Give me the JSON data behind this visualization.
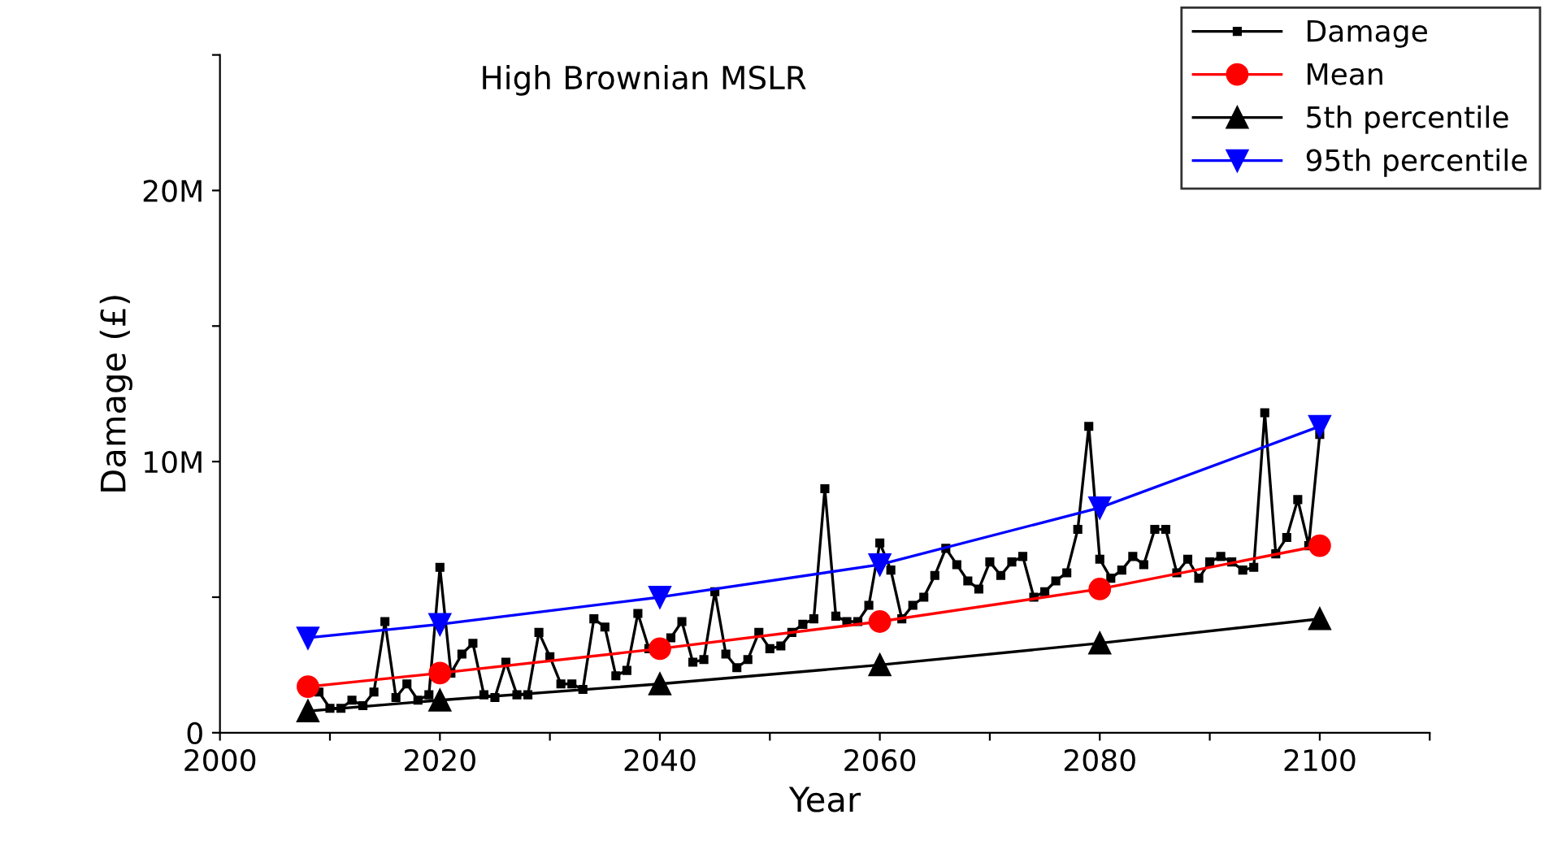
{
  "chart_data": {
    "type": "line",
    "title": "High Brownian MSLR",
    "xlabel": "Year",
    "ylabel": "Damage (£)",
    "xlim": [
      2000,
      2110
    ],
    "xticks": [
      2000,
      {
        "value": 2010,
        "label": null
      },
      2020,
      {
        "value": 2030,
        "label": null
      },
      2040,
      {
        "value": 2050,
        "label": null
      },
      2060,
      {
        "value": 2070,
        "label": null
      },
      2080,
      {
        "value": 2090,
        "label": null
      },
      2100,
      {
        "value": 2110,
        "label": null
      }
    ],
    "ylim": [
      0,
      25000000
    ],
    "yticks": [
      {
        "value": 0,
        "label": "0"
      },
      {
        "value": 5000000,
        "label": null
      },
      {
        "value": 10000000,
        "label": "10M"
      },
      {
        "value": 15000000,
        "label": null
      },
      {
        "value": 20000000,
        "label": "20M"
      },
      {
        "value": 25000000,
        "label": null
      }
    ],
    "grid": false,
    "legend": "top right",
    "series": [
      {
        "name": "Damage",
        "color": "#000000",
        "marker": "square",
        "x": [
          2009,
          2010,
          2011,
          2012,
          2013,
          2014,
          2015,
          2016,
          2017,
          2018,
          2019,
          2020,
          2021,
          2022,
          2023,
          2024,
          2025,
          2026,
          2027,
          2028,
          2029,
          2030,
          2031,
          2032,
          2033,
          2034,
          2035,
          2036,
          2037,
          2038,
          2039,
          2040,
          2041,
          2042,
          2043,
          2044,
          2045,
          2046,
          2047,
          2048,
          2049,
          2050,
          2051,
          2052,
          2053,
          2054,
          2055,
          2056,
          2057,
          2058,
          2059,
          2060,
          2061,
          2062,
          2063,
          2064,
          2065,
          2066,
          2067,
          2068,
          2069,
          2070,
          2071,
          2072,
          2073,
          2074,
          2075,
          2076,
          2077,
          2078,
          2079,
          2080,
          2081,
          2082,
          2083,
          2084,
          2085,
          2086,
          2087,
          2088,
          2089,
          2090,
          2091,
          2092,
          2093,
          2094,
          2095,
          2096,
          2097,
          2098,
          2099,
          2100
        ],
        "values": [
          1500000,
          900000,
          900000,
          1200000,
          1000000,
          1500000,
          4100000,
          1300000,
          1800000,
          1200000,
          1400000,
          6100000,
          2200000,
          2900000,
          3300000,
          1400000,
          1300000,
          2600000,
          1400000,
          1400000,
          3700000,
          2800000,
          1800000,
          1800000,
          1600000,
          4200000,
          3900000,
          2100000,
          2300000,
          4400000,
          3100000,
          null,
          3500000,
          4100000,
          2600000,
          2700000,
          5200000,
          2900000,
          2400000,
          2700000,
          3700000,
          3100000,
          3200000,
          3700000,
          4000000,
          4200000,
          9000000,
          4300000,
          4100000,
          4100000,
          4700000,
          7000000,
          6000000,
          4200000,
          4700000,
          5000000,
          5800000,
          6800000,
          6200000,
          5600000,
          5300000,
          6300000,
          5800000,
          6300000,
          6500000,
          5000000,
          5200000,
          5600000,
          5900000,
          7500000,
          11300000,
          6400000,
          5700000,
          6000000,
          6500000,
          6200000,
          7500000,
          7500000,
          5900000,
          6400000,
          5700000,
          6300000,
          6500000,
          6300000,
          6000000,
          6100000,
          11800000,
          6600000,
          7200000,
          8600000,
          6900000,
          11000000
        ]
      },
      {
        "name": "Mean",
        "color": "#ff0000",
        "marker": "circle",
        "x": [
          2008,
          2020,
          2040,
          2060,
          2080,
          2100
        ],
        "values": [
          1700000,
          2200000,
          3100000,
          4100000,
          5300000,
          6900000
        ]
      },
      {
        "name": "5th percentile",
        "color": "#000000",
        "marker": "triangle",
        "x": [
          2008,
          2020,
          2040,
          2060,
          2080,
          2100
        ],
        "values": [
          800000,
          1200000,
          1800000,
          2500000,
          3300000,
          4200000
        ]
      },
      {
        "name": "95th percentile",
        "color": "#0000ff",
        "marker": "triangle_down",
        "x": [
          2008,
          2020,
          2040,
          2060,
          2080,
          2100
        ],
        "values": [
          3500000,
          4000000,
          5000000,
          6200000,
          8300000,
          11300000
        ]
      }
    ]
  }
}
